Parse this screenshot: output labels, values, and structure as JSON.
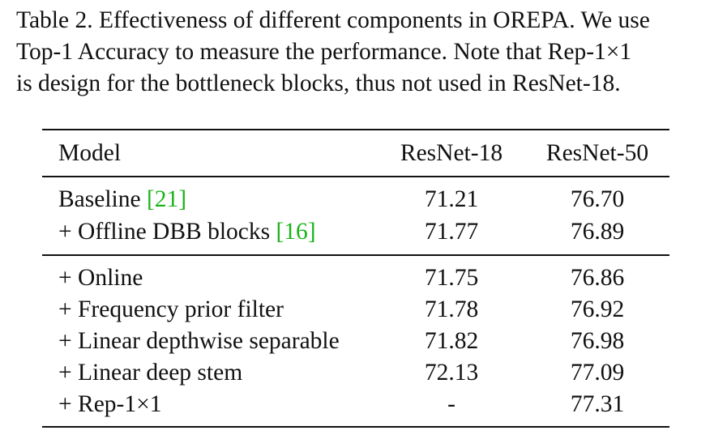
{
  "caption": {
    "lines": [
      "Table 2.  Effectiveness of different components in OREPA. We use",
      "Top-1 Accuracy to measure the performance.  Note that Rep-1×1",
      "is design for the bottleneck blocks, thus not used in ResNet-18."
    ]
  },
  "table": {
    "headers": [
      "Model",
      "ResNet-18",
      "ResNet-50"
    ],
    "rows": [
      {
        "model": "Baseline ",
        "ref": "[21]",
        "r18": "71.21",
        "r50": "76.70"
      },
      {
        "model": "+ Offline DBB blocks ",
        "ref": "[16]",
        "r18": "71.77",
        "r50": "76.89"
      },
      {
        "model": "+ Online",
        "ref": "",
        "r18": "71.75",
        "r50": "76.86"
      },
      {
        "model": "+ Frequency prior filter",
        "ref": "",
        "r18": "71.78",
        "r50": "76.92"
      },
      {
        "model": "+ Linear depthwise separable",
        "ref": "",
        "r18": "71.82",
        "r50": "76.98"
      },
      {
        "model": "+ Linear deep stem",
        "ref": "",
        "r18": "72.13",
        "r50": "77.09"
      },
      {
        "model": "+ Rep-1×1",
        "ref": "",
        "r18": "-",
        "r50": "77.31"
      }
    ]
  },
  "colors": {
    "text": "#111111",
    "citation_link": "#19b419"
  }
}
